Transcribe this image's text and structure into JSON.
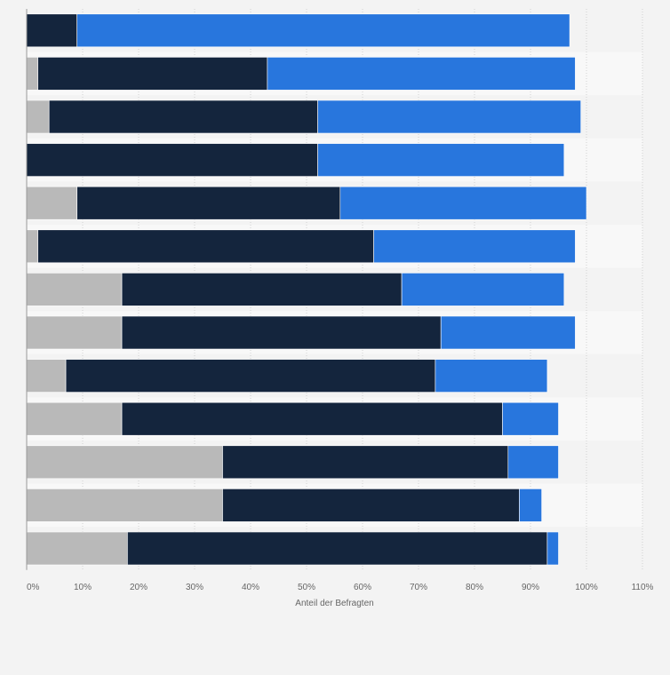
{
  "chart_data": {
    "type": "bar",
    "orientation": "horizontal",
    "stacked": true,
    "categories": [
      "",
      "",
      "",
      "",
      "",
      "",
      "",
      "",
      "",
      "",
      "",
      "",
      ""
    ],
    "series": [
      {
        "color": "#b9b9b9",
        "values": [
          0,
          2,
          4,
          0,
          9,
          2,
          17,
          17,
          7,
          17,
          35,
          35,
          18
        ]
      },
      {
        "color": "#14253d",
        "values": [
          9,
          41,
          48,
          52,
          47,
          60,
          50,
          57,
          66,
          68,
          51,
          53,
          75
        ]
      },
      {
        "color": "#2876dd",
        "values": [
          88,
          55,
          47,
          44,
          44,
          36,
          29,
          24,
          20,
          10,
          9,
          4,
          2
        ]
      }
    ],
    "xlabel": "Anteil der Befragten",
    "ylabel": "",
    "xlim": [
      0,
      110
    ],
    "xticks": [
      "0%",
      "10%",
      "20%",
      "30%",
      "40%",
      "50%",
      "60%",
      "70%",
      "80%",
      "90%",
      "100%",
      "110%"
    ],
    "grid": true,
    "legend": "none"
  }
}
